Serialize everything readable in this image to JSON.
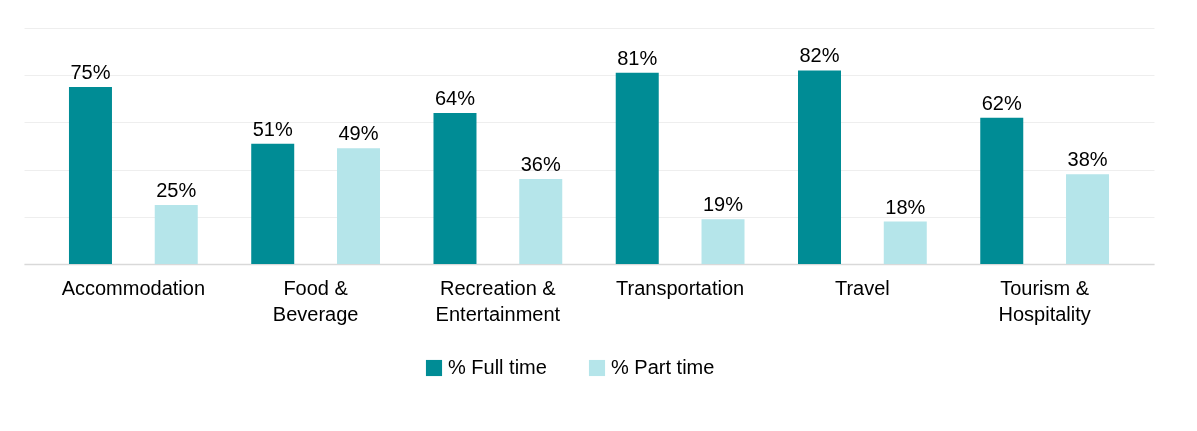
{
  "chart_data": {
    "type": "bar",
    "categories": [
      "Accommodation",
      "Food & Beverage",
      "Recreation & Entertainment",
      "Transportation",
      "Travel",
      "Tourism & Hospitality"
    ],
    "series": [
      {
        "name": "% Full time",
        "color": "#008c95",
        "values": [
          75,
          51,
          64,
          81,
          82,
          62
        ],
        "value_labels": [
          "75%",
          "51%",
          "64%",
          "81%",
          "82%",
          "62%"
        ]
      },
      {
        "name": "% Part time",
        "color": "#b5e5ea",
        "values": [
          25,
          49,
          36,
          19,
          18,
          38
        ],
        "value_labels": [
          "25%",
          "49%",
          "36%",
          "19%",
          "18%",
          "38%"
        ]
      }
    ],
    "ylim": [
      0,
      100
    ],
    "yticks": [
      {
        "value": 0,
        "label": null
      },
      {
        "value": 20,
        "label": null
      },
      {
        "value": 40,
        "label": null
      },
      {
        "value": 60,
        "label": null
      },
      {
        "value": 80,
        "label": null
      },
      {
        "value": 100,
        "label": null
      }
    ],
    "grid": "y",
    "legend": "bottom",
    "tick_labels": "x"
  }
}
